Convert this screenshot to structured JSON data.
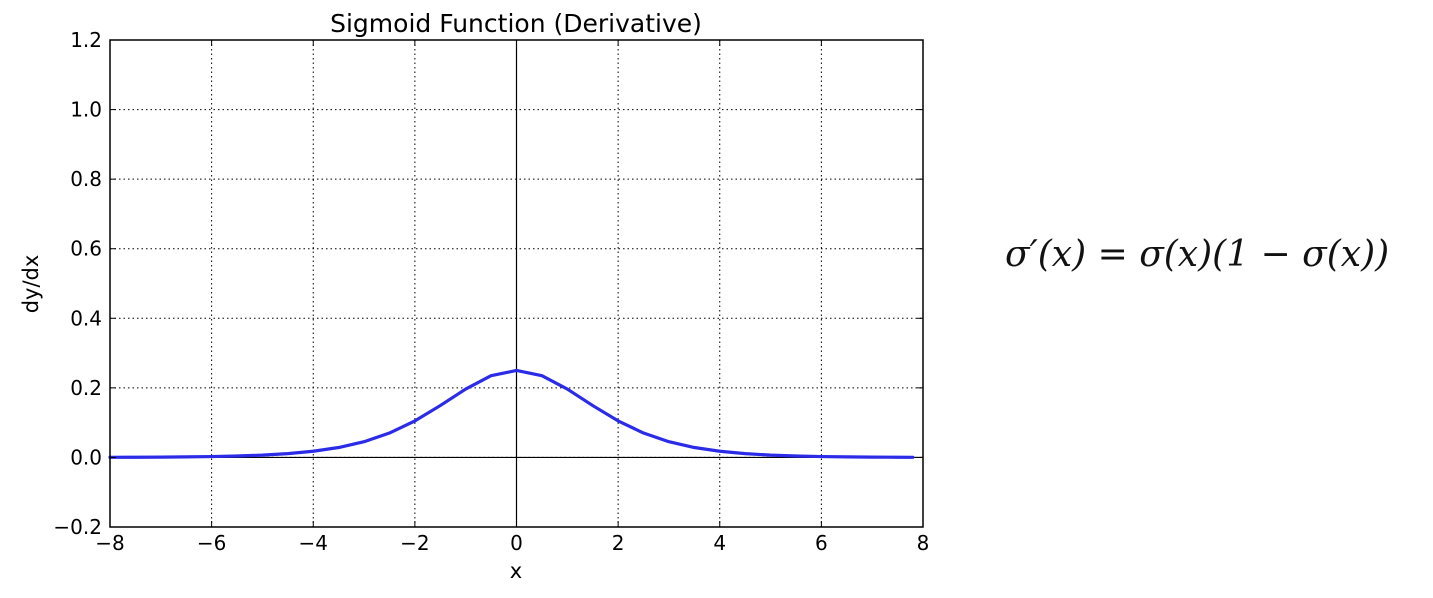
{
  "chart_data": {
    "type": "line",
    "title": "Sigmoid Function (Derivative)",
    "xlabel": "x",
    "ylabel": "dy/dx",
    "xlim": [
      -8,
      8
    ],
    "ylim": [
      -0.2,
      1.2
    ],
    "xticks": [
      -8,
      -6,
      -4,
      -2,
      0,
      2,
      4,
      6,
      8
    ],
    "xtick_labels": [
      "−8",
      "−6",
      "−4",
      "−2",
      "0",
      "2",
      "4",
      "6",
      "8"
    ],
    "yticks": [
      -0.2,
      0.0,
      0.2,
      0.4,
      0.6,
      0.8,
      1.0,
      1.2
    ],
    "ytick_labels": [
      "−0.2",
      "0.0",
      "0.2",
      "0.4",
      "0.6",
      "0.8",
      "1.0",
      "1.2"
    ],
    "grid": true,
    "series": [
      {
        "color": "#2b2be8",
        "x": [
          -8,
          -7.5,
          -7,
          -6.5,
          -6,
          -5.5,
          -5,
          -4.5,
          -4,
          -3.5,
          -3,
          -2.5,
          -2,
          -1.5,
          -1,
          -0.5,
          0,
          0.5,
          1,
          1.5,
          2,
          2.5,
          3,
          3.5,
          4,
          4.5,
          5,
          5.5,
          6,
          6.5,
          7,
          7.5,
          7.8
        ],
        "y": [
          0.0003,
          0.0006,
          0.0009,
          0.0015,
          0.0025,
          0.0041,
          0.0066,
          0.0109,
          0.0177,
          0.0285,
          0.0452,
          0.0701,
          0.105,
          0.1491,
          0.1966,
          0.235,
          0.25,
          0.235,
          0.1966,
          0.1491,
          0.105,
          0.0701,
          0.0452,
          0.0285,
          0.0177,
          0.0109,
          0.0066,
          0.0041,
          0.0025,
          0.0015,
          0.0009,
          0.0006,
          0.0004
        ]
      }
    ]
  },
  "formula": {
    "text": "σ′(x) = σ(x)(1 − σ(x))"
  }
}
